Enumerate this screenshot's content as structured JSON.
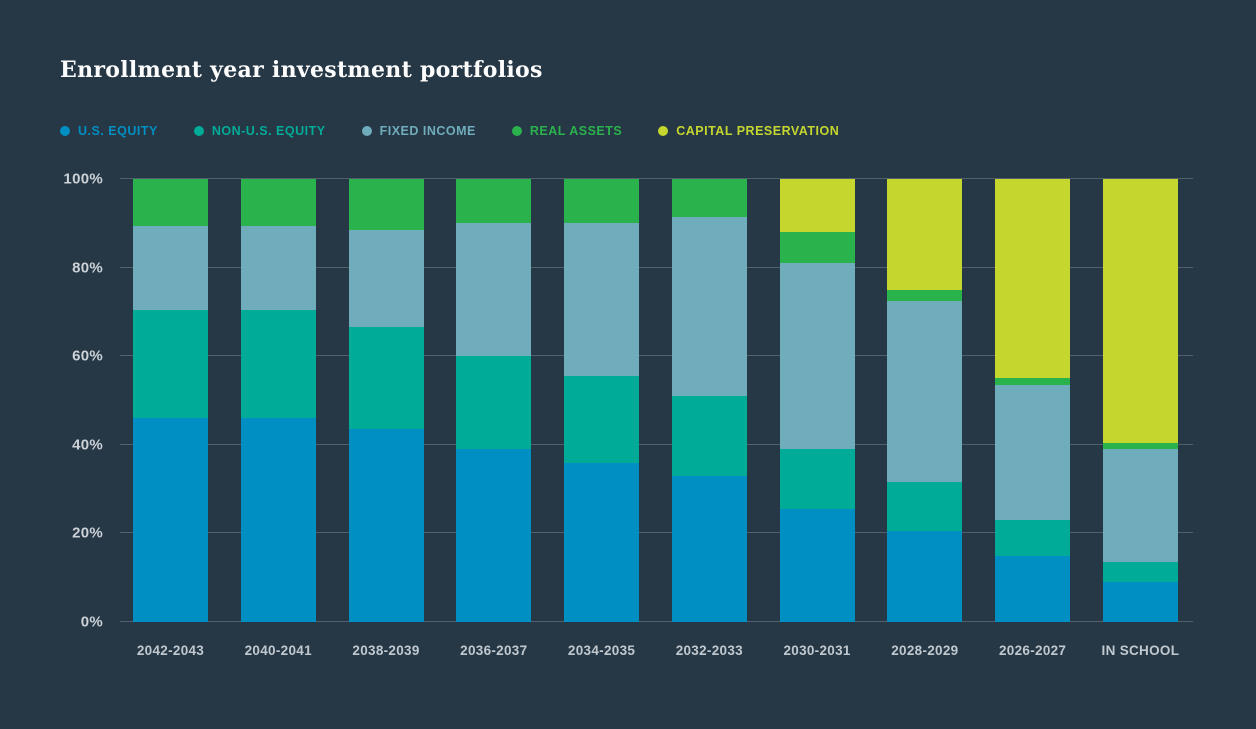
{
  "title": "Enrollment year investment portfolios",
  "colors": {
    "background": "#263746",
    "gridline": "#51606c",
    "title_text": "#fdfdfd",
    "y_axis_label": "#ccd2d7",
    "x_axis_label": "#c1c9cf"
  },
  "chart_data": {
    "type": "bar",
    "stacked": true,
    "units": "percent",
    "title": "Enrollment year investment portfolios",
    "xlabel": "",
    "ylabel": "",
    "ylim": [
      0,
      100
    ],
    "grid": true,
    "legend_position": "top",
    "categories": [
      "2042-2043",
      "2040-2041",
      "2038-2039",
      "2036-2037",
      "2034-2035",
      "2032-2033",
      "2030-2031",
      "2028-2029",
      "2026-2027",
      "IN SCHOOL"
    ],
    "yticks": [
      {
        "label": "0%",
        "value": 0
      },
      {
        "label": "20%",
        "value": 20
      },
      {
        "label": "40%",
        "value": 40
      },
      {
        "label": "60%",
        "value": 60
      },
      {
        "label": "80%",
        "value": 80
      },
      {
        "label": "100%",
        "value": 100
      }
    ],
    "series": [
      {
        "name": "U.S. EQUITY",
        "legend_label": "U.S. EQUITY",
        "color": "#008fc3",
        "values": [
          46,
          46,
          43.5,
          39,
          36,
          33,
          25.5,
          20.5,
          15,
          9
        ]
      },
      {
        "name": "NON-U.S. EQUITY",
        "legend_label": "NON-U.S. EQUITY",
        "color": "#00ab97",
        "values": [
          24.5,
          24.5,
          23,
          21,
          19.5,
          18,
          13.5,
          11,
          8,
          4.5
        ]
      },
      {
        "name": "FIXED INCOME",
        "legend_label": "FIXED INCOME",
        "color": "#70adbc",
        "values": [
          19,
          19,
          22,
          30,
          34.5,
          40.5,
          42,
          41,
          30.5,
          25.5
        ]
      },
      {
        "name": "REAL ASSETS",
        "legend_label": "REAL  ASSETS",
        "color": "#2ab34c",
        "values": [
          10.5,
          10.5,
          11.5,
          10,
          10,
          8.5,
          7,
          2.5,
          1.5,
          1.5
        ]
      },
      {
        "name": "CAPITAL PRESERVATION",
        "legend_label": "CAPITAL PRESERVATION",
        "color": "#c5d62f",
        "values": [
          0,
          0,
          0,
          0,
          0,
          0,
          12,
          25,
          45,
          59.5
        ]
      }
    ]
  }
}
